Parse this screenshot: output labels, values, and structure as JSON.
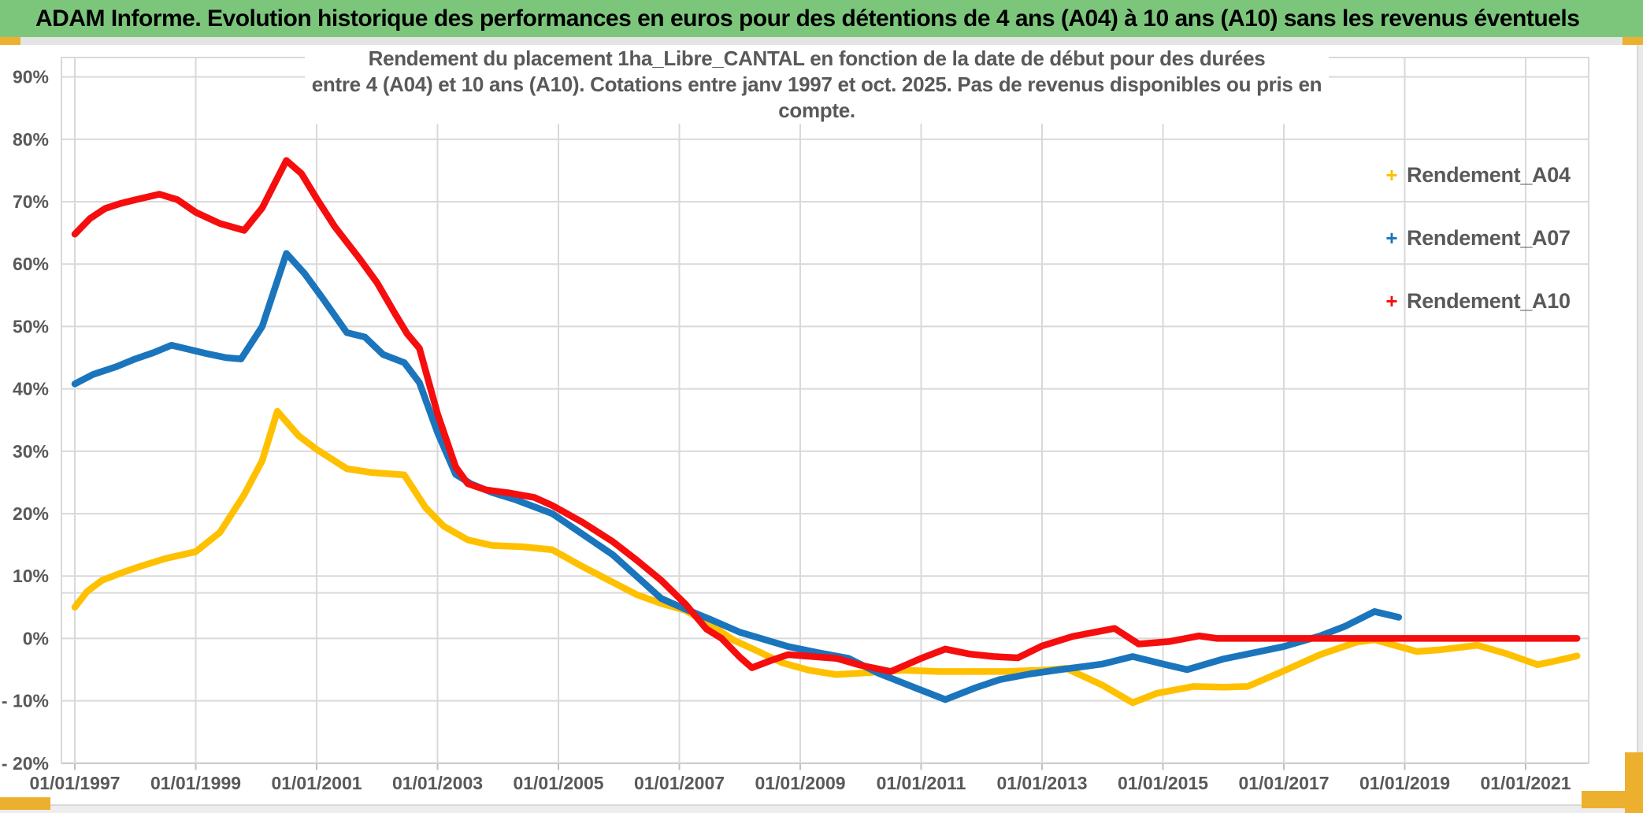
{
  "header": {
    "title": "ADAM Informe. Evolution historique des performances en euros pour des détentions de 4 ans (A04) à 10 ans (A10) sans les revenus éventuels",
    "background_color": "#7CC67C"
  },
  "accent_color": "#EDB02E",
  "chart_data": {
    "type": "line",
    "title_line1": "Rendement du placement 1ha_Libre_CANTAL en fonction de la date de début pour des durées",
    "title_line2": "entre 4 (A04) et 10 ans (A10). Cotations entre janv 1997 et oct. 2025. Pas de revenus disponibles ou pris en compte.",
    "xlabel": "",
    "ylabel": "",
    "xlim": [
      1996.78,
      2022.03
    ],
    "ylim": [
      -20,
      93
    ],
    "grid": true,
    "legend_position": "right",
    "extra_gridline_pct": 7.3,
    "gridline_color": "#D9D9D9",
    "axis_text_color": "#595959",
    "y_ticks": [
      {
        "label": "90%",
        "value": 90
      },
      {
        "label": "80%",
        "value": 80
      },
      {
        "label": "70%",
        "value": 70
      },
      {
        "label": "60%",
        "value": 60
      },
      {
        "label": "50%",
        "value": 50
      },
      {
        "label": "40%",
        "value": 40
      },
      {
        "label": "30%",
        "value": 30
      },
      {
        "label": "20%",
        "value": 20
      },
      {
        "label": "10%",
        "value": 10
      },
      {
        "label": "0%",
        "value": 0
      },
      {
        "label": "- 10%",
        "value": -10
      },
      {
        "label": "- 20%",
        "value": -20
      }
    ],
    "x_ticks": [
      {
        "year": 1997,
        "label": "01/01/1997"
      },
      {
        "year": 1999,
        "label": "01/01/1999"
      },
      {
        "year": 2001,
        "label": "01/01/2001"
      },
      {
        "year": 2003,
        "label": "01/01/2003"
      },
      {
        "year": 2005,
        "label": "01/01/2005"
      },
      {
        "year": 2007,
        "label": "01/01/2007"
      },
      {
        "year": 2009,
        "label": "01/01/2009"
      },
      {
        "year": 2011,
        "label": "01/01/2011"
      },
      {
        "year": 2013,
        "label": "01/01/2013"
      },
      {
        "year": 2015,
        "label": "01/01/2015"
      },
      {
        "year": 2017,
        "label": "01/01/2017"
      },
      {
        "year": 2019,
        "label": "01/01/2019"
      },
      {
        "year": 2021,
        "label": "01/01/2021"
      }
    ],
    "legend": [
      {
        "label": "Rendement_A04",
        "color": "#FFC000"
      },
      {
        "label": "Rendement_A07",
        "color": "#1B75BC"
      },
      {
        "label": "Rendement_A10",
        "color": "#F60D0D"
      }
    ],
    "series": [
      {
        "name": "Rendement_A04",
        "color": "#FFC000",
        "points": [
          [
            1997.0,
            5.0
          ],
          [
            1997.2,
            7.5
          ],
          [
            1997.45,
            9.3
          ],
          [
            1997.8,
            10.6
          ],
          [
            1998.1,
            11.6
          ],
          [
            1998.5,
            12.8
          ],
          [
            1999.0,
            13.9
          ],
          [
            1999.4,
            17.0
          ],
          [
            1999.8,
            23.0
          ],
          [
            2000.1,
            28.5
          ],
          [
            2000.35,
            36.4
          ],
          [
            2000.7,
            32.5
          ],
          [
            2001.0,
            30.3
          ],
          [
            2001.5,
            27.2
          ],
          [
            2001.9,
            26.6
          ],
          [
            2002.45,
            26.2
          ],
          [
            2002.8,
            21.0
          ],
          [
            2003.1,
            18.0
          ],
          [
            2003.5,
            15.8
          ],
          [
            2003.9,
            14.9
          ],
          [
            2004.4,
            14.7
          ],
          [
            2004.9,
            14.2
          ],
          [
            2005.4,
            11.5
          ],
          [
            2005.9,
            9.0
          ],
          [
            2006.3,
            7.0
          ],
          [
            2006.7,
            5.6
          ],
          [
            2007.1,
            4.5
          ],
          [
            2007.5,
            2.3
          ],
          [
            2007.9,
            -0.3
          ],
          [
            2008.2,
            -1.6
          ],
          [
            2008.7,
            -3.9
          ],
          [
            2009.15,
            -5.1
          ],
          [
            2009.6,
            -5.8
          ],
          [
            2010.1,
            -5.5
          ],
          [
            2010.7,
            -5.1
          ],
          [
            2011.3,
            -5.3
          ],
          [
            2011.9,
            -5.3
          ],
          [
            2012.4,
            -5.3
          ],
          [
            2013.0,
            -5.1
          ],
          [
            2013.4,
            -4.8
          ],
          [
            2014.0,
            -7.5
          ],
          [
            2014.5,
            -10.3
          ],
          [
            2014.9,
            -8.8
          ],
          [
            2015.5,
            -7.7
          ],
          [
            2016.0,
            -7.8
          ],
          [
            2016.4,
            -7.7
          ],
          [
            2017.0,
            -5.2
          ],
          [
            2017.6,
            -2.6
          ],
          [
            2018.2,
            -0.6
          ],
          [
            2018.5,
            -0.2
          ],
          [
            2019.2,
            -2.1
          ],
          [
            2019.6,
            -1.8
          ],
          [
            2020.2,
            -1.1
          ],
          [
            2020.7,
            -2.5
          ],
          [
            2021.2,
            -4.2
          ],
          [
            2021.5,
            -3.6
          ],
          [
            2021.85,
            -2.8
          ]
        ]
      },
      {
        "name": "Rendement_A07",
        "color": "#1B75BC",
        "points": [
          [
            1997.0,
            40.8
          ],
          [
            1997.3,
            42.3
          ],
          [
            1997.7,
            43.6
          ],
          [
            1998.0,
            44.8
          ],
          [
            1998.3,
            45.8
          ],
          [
            1998.6,
            47.0
          ],
          [
            1998.9,
            46.3
          ],
          [
            1999.2,
            45.6
          ],
          [
            1999.5,
            45.0
          ],
          [
            1999.75,
            44.8
          ],
          [
            2000.1,
            50.0
          ],
          [
            2000.5,
            61.7
          ],
          [
            2000.8,
            58.5
          ],
          [
            2001.1,
            54.5
          ],
          [
            2001.5,
            49.0
          ],
          [
            2001.8,
            48.3
          ],
          [
            2002.1,
            45.5
          ],
          [
            2002.45,
            44.2
          ],
          [
            2002.7,
            41.0
          ],
          [
            2003.0,
            33.0
          ],
          [
            2003.3,
            26.3
          ],
          [
            2003.55,
            24.8
          ],
          [
            2003.9,
            23.4
          ],
          [
            2004.3,
            22.2
          ],
          [
            2004.9,
            20.0
          ],
          [
            2005.4,
            16.7
          ],
          [
            2005.9,
            13.4
          ],
          [
            2006.3,
            9.9
          ],
          [
            2006.7,
            6.4
          ],
          [
            2007.1,
            4.7
          ],
          [
            2007.5,
            3.1
          ],
          [
            2008.0,
            1.0
          ],
          [
            2008.35,
            0.0
          ],
          [
            2008.8,
            -1.3
          ],
          [
            2009.3,
            -2.3
          ],
          [
            2009.8,
            -3.2
          ],
          [
            2010.3,
            -5.6
          ],
          [
            2010.9,
            -7.9
          ],
          [
            2011.4,
            -9.8
          ],
          [
            2011.9,
            -7.9
          ],
          [
            2012.3,
            -6.6
          ],
          [
            2012.8,
            -5.7
          ],
          [
            2013.3,
            -5.0
          ],
          [
            2013.7,
            -4.5
          ],
          [
            2014.0,
            -4.1
          ],
          [
            2014.5,
            -2.9
          ],
          [
            2015.0,
            -4.1
          ],
          [
            2015.4,
            -5.0
          ],
          [
            2016.0,
            -3.3
          ],
          [
            2016.5,
            -2.3
          ],
          [
            2017.0,
            -1.3
          ],
          [
            2017.6,
            0.4
          ],
          [
            2018.0,
            1.9
          ],
          [
            2018.5,
            4.3
          ],
          [
            2018.9,
            3.4
          ]
        ]
      },
      {
        "name": "Rendement_A10",
        "color": "#F60D0D",
        "points": [
          [
            1997.0,
            64.8
          ],
          [
            1997.25,
            67.3
          ],
          [
            1997.5,
            68.9
          ],
          [
            1997.75,
            69.7
          ],
          [
            1998.0,
            70.3
          ],
          [
            1998.4,
            71.2
          ],
          [
            1998.7,
            70.3
          ],
          [
            1999.0,
            68.3
          ],
          [
            1999.4,
            66.5
          ],
          [
            1999.8,
            65.4
          ],
          [
            2000.1,
            69.0
          ],
          [
            2000.5,
            76.6
          ],
          [
            2000.75,
            74.5
          ],
          [
            2001.0,
            70.5
          ],
          [
            2001.3,
            66.0
          ],
          [
            2001.7,
            61.0
          ],
          [
            2002.0,
            57.0
          ],
          [
            2002.3,
            52.0
          ],
          [
            2002.5,
            48.8
          ],
          [
            2002.7,
            46.5
          ],
          [
            2003.0,
            36.0
          ],
          [
            2003.3,
            27.5
          ],
          [
            2003.5,
            24.8
          ],
          [
            2003.8,
            23.8
          ],
          [
            2004.2,
            23.3
          ],
          [
            2004.6,
            22.6
          ],
          [
            2004.9,
            21.3
          ],
          [
            2005.4,
            18.6
          ],
          [
            2005.9,
            15.5
          ],
          [
            2006.3,
            12.5
          ],
          [
            2006.7,
            9.3
          ],
          [
            2007.1,
            5.5
          ],
          [
            2007.45,
            1.5
          ],
          [
            2007.7,
            0.0
          ],
          [
            2008.0,
            -3.0
          ],
          [
            2008.2,
            -4.7
          ],
          [
            2008.5,
            -3.6
          ],
          [
            2008.8,
            -2.6
          ],
          [
            2009.2,
            -2.9
          ],
          [
            2009.6,
            -3.2
          ],
          [
            2010.0,
            -4.3
          ],
          [
            2010.5,
            -5.3
          ],
          [
            2011.0,
            -3.2
          ],
          [
            2011.4,
            -1.7
          ],
          [
            2011.8,
            -2.5
          ],
          [
            2012.2,
            -2.9
          ],
          [
            2012.6,
            -3.1
          ],
          [
            2013.0,
            -1.2
          ],
          [
            2013.5,
            0.3
          ],
          [
            2014.2,
            1.6
          ],
          [
            2014.6,
            -0.9
          ],
          [
            2015.1,
            -0.5
          ],
          [
            2015.6,
            0.4
          ],
          [
            2015.9,
            0.0
          ],
          [
            2017.0,
            0.0
          ],
          [
            2018.0,
            0.0
          ],
          [
            2019.0,
            0.0
          ],
          [
            2020.0,
            0.0
          ],
          [
            2021.0,
            0.0
          ],
          [
            2021.85,
            0.0
          ]
        ]
      }
    ]
  }
}
